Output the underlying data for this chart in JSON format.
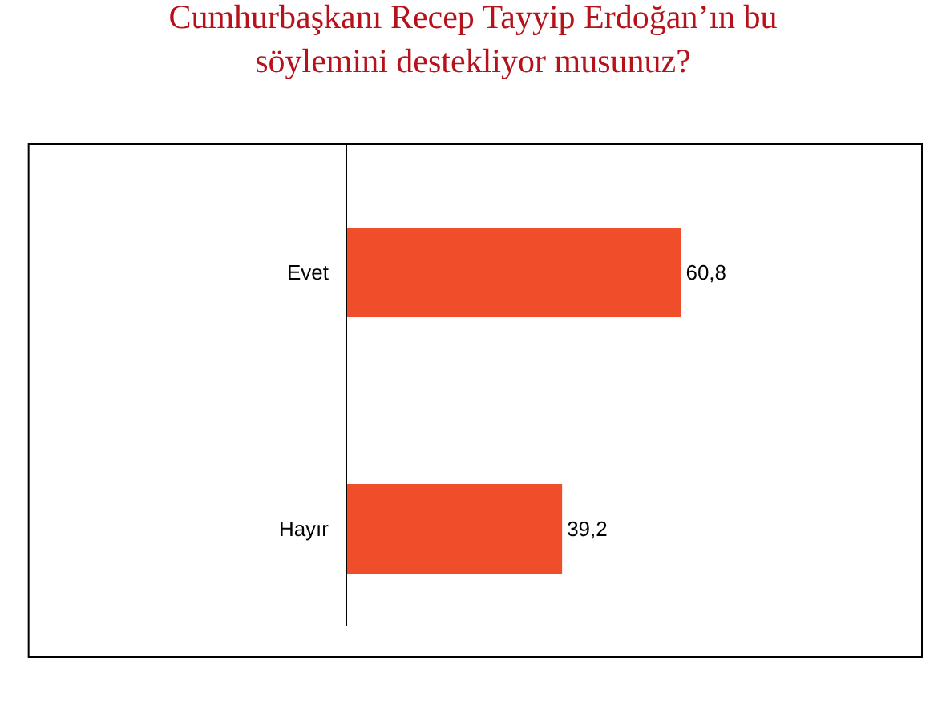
{
  "chart_data": {
    "type": "bar",
    "orientation": "horizontal",
    "title": "Cumhurbaşkanı Recep Tayyip Erdoğan’ın bu söylemini destekliyor musunuz?",
    "categories": [
      "Evet",
      "Hayır"
    ],
    "values": [
      60.8,
      39.2
    ],
    "value_labels": [
      "60,8",
      "39,2"
    ],
    "color": "#f04e2b",
    "grid": false,
    "legend": false
  }
}
